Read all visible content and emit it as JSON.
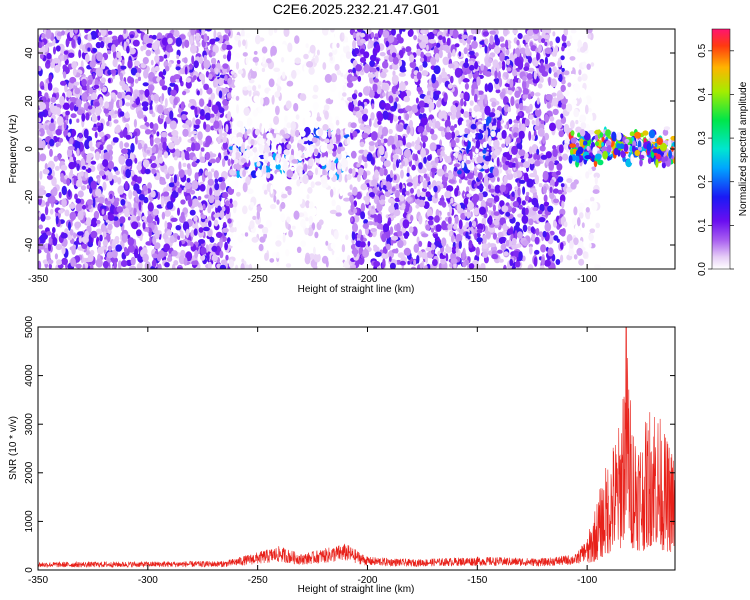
{
  "figure_title": "C2E6.2025.232.21.47.G01",
  "chart_data": [
    {
      "type": "heatmap",
      "title": "C2E6.2025.232.21.47.G01",
      "xlabel": "Height of straight line (km)",
      "ylabel": "Frequency (Hz)",
      "xlim": [
        -350,
        -60
      ],
      "ylim": [
        -50,
        50
      ],
      "x_ticks": [
        -350,
        -300,
        -250,
        -200,
        -150,
        -100
      ],
      "y_ticks": [
        -40,
        -20,
        0,
        20,
        40
      ],
      "colorbar": {
        "label": "Normalized spectral amplitude",
        "range": [
          0.0,
          0.55
        ],
        "ticks": [
          "0.0",
          "0.1",
          "0.2",
          "0.3",
          "0.4",
          "0.5"
        ],
        "colormap": "rainbow (white-magenta-purple-blue-cyan-green-yellow-red)"
      },
      "features": [
        {
          "x_range": [
            -350,
            -262
          ],
          "frequency_range": [
            -50,
            50
          ],
          "level": "scattered purple/violet, 0.03-0.15"
        },
        {
          "x_range": [
            -262,
            -208
          ],
          "frequency_range": [
            -12,
            8
          ],
          "level": "blue-cyan band up to ~0.25"
        },
        {
          "x_range": [
            -262,
            -208
          ],
          "frequency_range": [
            -50,
            50
          ],
          "level": "sparse faint lavender, <0.05"
        },
        {
          "x_range": [
            -208,
            -110
          ],
          "frequency_range": [
            -50,
            50
          ],
          "level": "scattered purple/violet, 0.03-0.15"
        },
        {
          "x_range": [
            -160,
            -140
          ],
          "frequency_range": [
            -12,
            15
          ],
          "level": "blue-cyan spots ~0.2"
        },
        {
          "x_range": [
            -110,
            -95
          ],
          "frequency_range": [
            -50,
            50
          ],
          "level": "faint lavender, <0.05"
        },
        {
          "x_range": [
            -108,
            -60
          ],
          "frequency_range": [
            -8,
            10
          ],
          "level": "strong band, cyan-green-yellow with red peaks up to ~0.55"
        }
      ],
      "grid": false
    },
    {
      "type": "line",
      "xlabel": "Height of straight line (km)",
      "ylabel": "SNR (10 * v/v)",
      "xlim": [
        -350,
        -60
      ],
      "ylim": [
        0,
        5000
      ],
      "x_ticks": [
        -350,
        -300,
        -250,
        -200,
        -150,
        -100
      ],
      "y_ticks": [
        0,
        1000,
        2000,
        3000,
        4000,
        5000
      ],
      "series_color": "#e8211a",
      "profile": [
        {
          "x": -350,
          "y": 150
        },
        {
          "x": -300,
          "y": 160
        },
        {
          "x": -265,
          "y": 170
        },
        {
          "x": -255,
          "y": 280
        },
        {
          "x": -240,
          "y": 450
        },
        {
          "x": -230,
          "y": 300
        },
        {
          "x": -210,
          "y": 500
        },
        {
          "x": -200,
          "y": 250
        },
        {
          "x": -180,
          "y": 200
        },
        {
          "x": -150,
          "y": 250
        },
        {
          "x": -120,
          "y": 220
        },
        {
          "x": -105,
          "y": 300
        },
        {
          "x": -100,
          "y": 600
        },
        {
          "x": -95,
          "y": 1400
        },
        {
          "x": -90,
          "y": 2200
        },
        {
          "x": -85,
          "y": 2800
        },
        {
          "x": -82,
          "y": 5000
        },
        {
          "x": -80,
          "y": 3000
        },
        {
          "x": -75,
          "y": 2500
        },
        {
          "x": -70,
          "y": 3400
        },
        {
          "x": -65,
          "y": 2600
        },
        {
          "x": -60,
          "y": 2200
        }
      ],
      "grid": false
    }
  ]
}
